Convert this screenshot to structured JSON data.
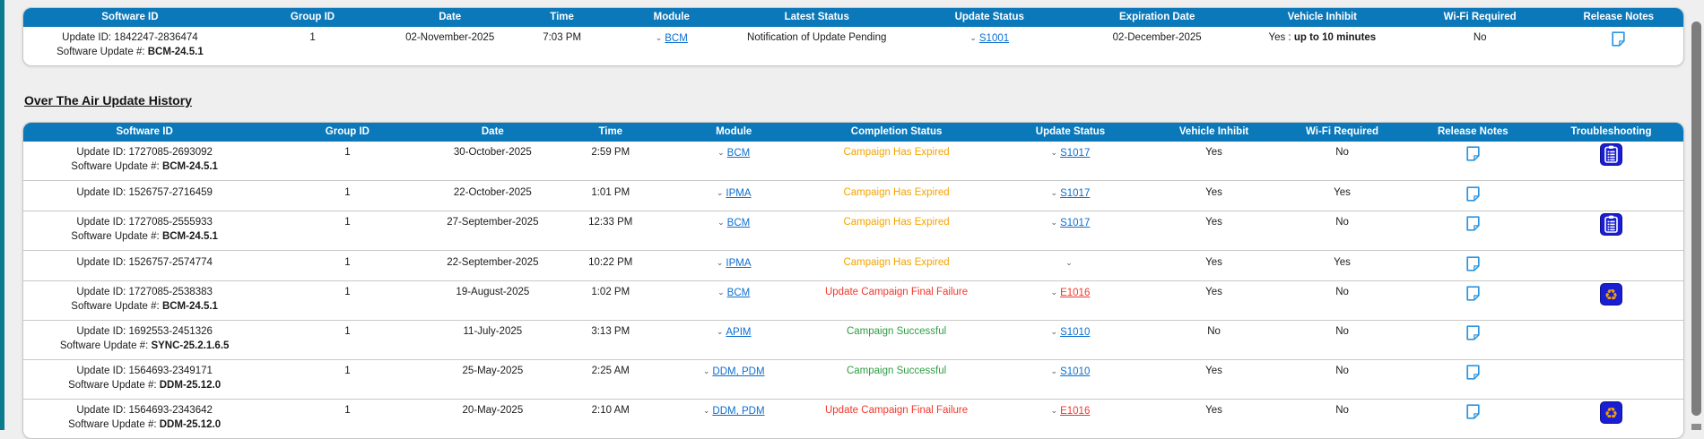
{
  "colors": {
    "header": "#0b78ba",
    "link": "#0b6fd0",
    "link_error": "#f2362b",
    "expired": "#f5a300",
    "failure": "#f2362b",
    "success": "#2f9e44",
    "strip": "#0c7b8d",
    "note_icon": "#2b95e0",
    "icon_bg": "#1a1ed2",
    "icon_accent": "#f59f00"
  },
  "icons": {
    "chevron": "⌄",
    "release_notes": "note-icon",
    "troubleshooting_clipboard": "clipboard-icon",
    "troubleshooting_recycle": "recycle-icon"
  },
  "current_update_table": {
    "columns": [
      "Software ID",
      "Group ID",
      "Date",
      "Time",
      "Module",
      "Latest Status",
      "Update Status",
      "Expiration Date",
      "Vehicle Inhibit",
      "Wi-Fi Required",
      "Release Notes"
    ],
    "row": {
      "update_id": "Update ID: 1842247-2836474",
      "software_update_label": "Software Update #: ",
      "software_update_value": "BCM-24.5.1",
      "group_id": "1",
      "date": "02-November-2025",
      "time": "7:03 PM",
      "module": "BCM",
      "latest_status": "Notification of Update Pending",
      "update_status": "S1001",
      "expiration_date": "02-December-2025",
      "vehicle_inhibit_prefix": "Yes : ",
      "vehicle_inhibit_bold": "up to 10 minutes",
      "wifi_required": "No"
    }
  },
  "history": {
    "heading": "Over The Air Update History",
    "software_update_label": "Software Update #: ",
    "columns": [
      "Software ID",
      "Group ID",
      "Date",
      "Time",
      "Module",
      "Completion Status",
      "Update Status",
      "Vehicle Inhibit",
      "Wi-Fi Required",
      "Release Notes",
      "Troubleshooting"
    ],
    "rows": [
      {
        "update_id": "Update ID: 1727085-2693092",
        "software_update_value": "BCM-24.5.1",
        "group_id": "1",
        "date": "30-October-2025",
        "time": "2:59 PM",
        "module": "BCM",
        "completion_status": "Campaign Has Expired",
        "status_type": "expired",
        "update_status": "S1017",
        "vehicle_inhibit": "Yes",
        "wifi_required": "No",
        "troubleshooting": "clipboard"
      },
      {
        "update_id": "Update ID: 1526757-2716459",
        "software_update_value": null,
        "group_id": "1",
        "date": "22-October-2025",
        "time": "1:01 PM",
        "module": "IPMA",
        "completion_status": "Campaign Has Expired",
        "status_type": "expired",
        "update_status": "S1017",
        "vehicle_inhibit": "Yes",
        "wifi_required": "Yes",
        "troubleshooting": null
      },
      {
        "update_id": "Update ID: 1727085-2555933",
        "software_update_value": "BCM-24.5.1",
        "group_id": "1",
        "date": "27-September-2025",
        "time": "12:33 PM",
        "module": "BCM",
        "completion_status": "Campaign Has Expired",
        "status_type": "expired",
        "update_status": "S1017",
        "vehicle_inhibit": "Yes",
        "wifi_required": "No",
        "troubleshooting": "clipboard"
      },
      {
        "update_id": "Update ID: 1526757-2574774",
        "software_update_value": null,
        "group_id": "1",
        "date": "22-September-2025",
        "time": "10:22 PM",
        "module": "IPMA",
        "completion_status": "Campaign Has Expired",
        "status_type": "expired",
        "update_status": "",
        "vehicle_inhibit": "Yes",
        "wifi_required": "Yes",
        "troubleshooting": null
      },
      {
        "update_id": "Update ID: 1727085-2538383",
        "software_update_value": "BCM-24.5.1",
        "group_id": "1",
        "date": "19-August-2025",
        "time": "1:02 PM",
        "module": "BCM",
        "completion_status": "Update Campaign Final Failure",
        "status_type": "failure",
        "update_status": "E1016",
        "vehicle_inhibit": "Yes",
        "wifi_required": "No",
        "troubleshooting": "recycle"
      },
      {
        "update_id": "Update ID: 1692553-2451326",
        "software_update_value": "SYNC-25.2.1.6.5",
        "group_id": "1",
        "date": "11-July-2025",
        "time": "3:13 PM",
        "module": "APIM",
        "completion_status": "Campaign Successful",
        "status_type": "success",
        "update_status": "S1010",
        "vehicle_inhibit": "No",
        "wifi_required": "No",
        "troubleshooting": null
      },
      {
        "update_id": "Update ID: 1564693-2349171",
        "software_update_value": "DDM-25.12.0",
        "group_id": "1",
        "date": "25-May-2025",
        "time": "2:25 AM",
        "module": "DDM, PDM",
        "completion_status": "Campaign Successful",
        "status_type": "success",
        "update_status": "S1010",
        "vehicle_inhibit": "Yes",
        "wifi_required": "No",
        "troubleshooting": null
      },
      {
        "update_id": "Update ID: 1564693-2343642",
        "software_update_value": "DDM-25.12.0",
        "group_id": "1",
        "date": "20-May-2025",
        "time": "2:10 AM",
        "module": "DDM, PDM",
        "completion_status": "Update Campaign Final Failure",
        "status_type": "failure",
        "update_status": "E1016",
        "vehicle_inhibit": "Yes",
        "wifi_required": "No",
        "troubleshooting": "recycle"
      }
    ]
  }
}
